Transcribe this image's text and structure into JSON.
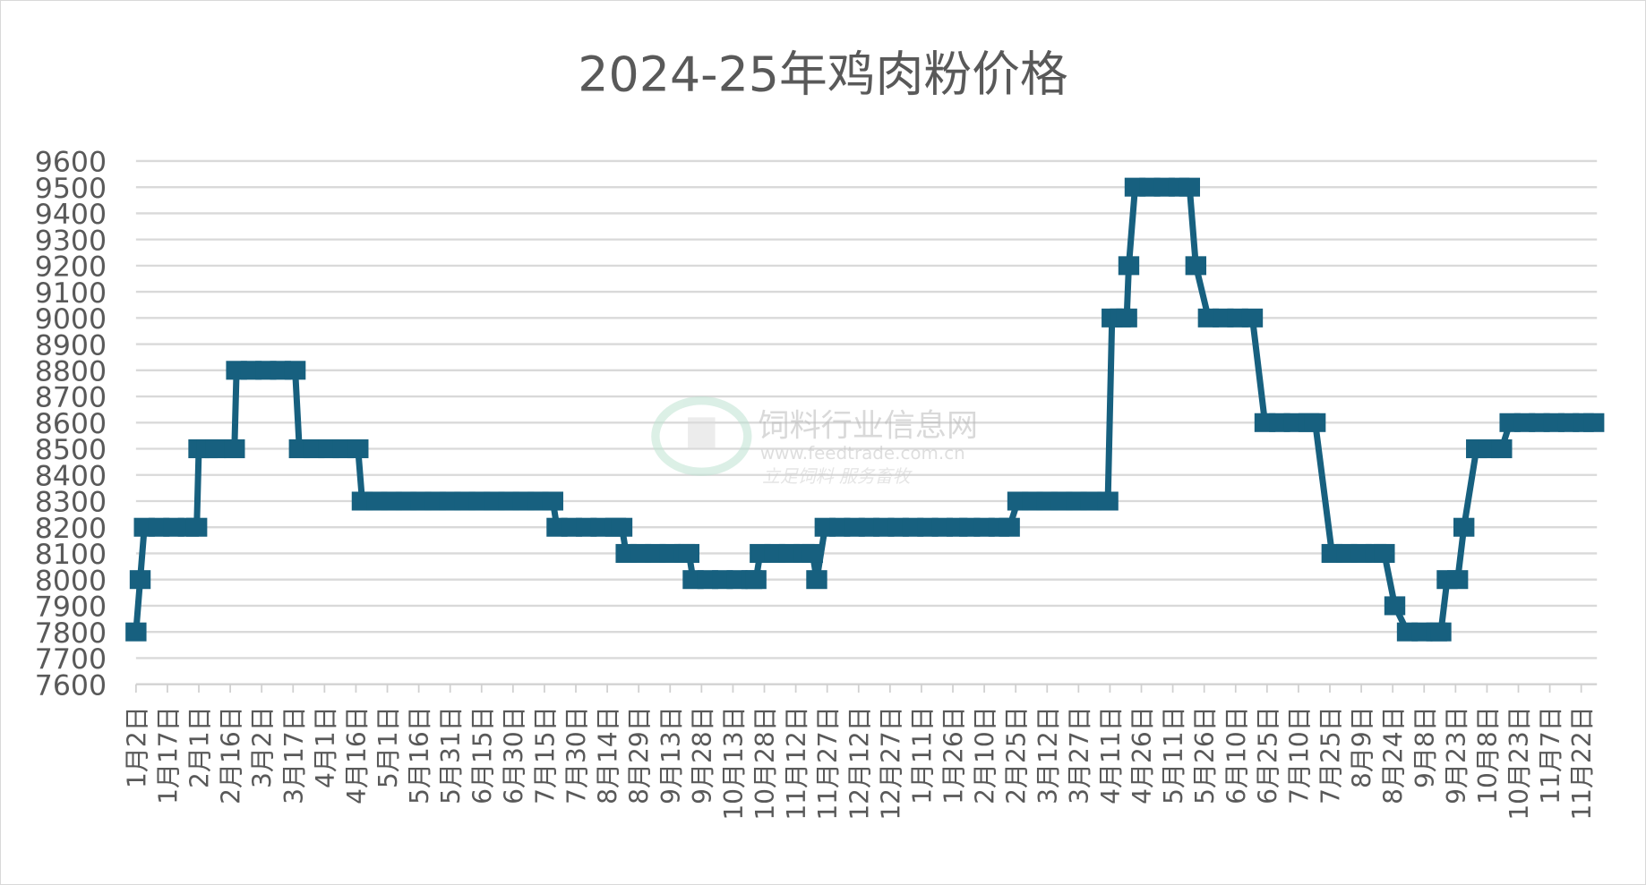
{
  "chart_data": {
    "type": "line",
    "title": "2024-25年鸡肉粉价格",
    "xlabel": "",
    "ylabel": "",
    "ylim": [
      7600,
      9600
    ],
    "ytick_step": 100,
    "grid": true,
    "legend": "none",
    "colors": {
      "series": "#17607f",
      "grid": "#d9d9d9",
      "text": "#595959"
    },
    "x_tick_labels": [
      "1月2日",
      "1月17日",
      "2月1日",
      "2月16日",
      "3月2日",
      "3月17日",
      "4月1日",
      "4月16日",
      "5月1日",
      "5月16日",
      "5月31日",
      "6月15日",
      "6月30日",
      "7月15日",
      "7月30日",
      "8月14日",
      "8月29日",
      "9月13日",
      "9月28日",
      "10月13日",
      "10月28日",
      "11月12日",
      "11月27日",
      "12月12日",
      "12月27日",
      "1月11日",
      "1月26日",
      "2月10日",
      "2月25日",
      "3月12日",
      "3月27日",
      "4月11日",
      "4月26日",
      "5月11日",
      "5月26日",
      "6月10日",
      "6月25日",
      "7月10日",
      "7月25日",
      "8月9日",
      "8月24日",
      "9月8日",
      "9月23日",
      "10月8日",
      "10月23日",
      "11月7日",
      "11月22日"
    ],
    "points": [
      [
        "2024-01-02",
        7800
      ],
      [
        "2024-01-04",
        8000
      ],
      [
        "2024-01-06",
        8200
      ],
      [
        "2024-01-13",
        8200
      ],
      [
        "2024-01-20",
        8200
      ],
      [
        "2024-01-27",
        8200
      ],
      [
        "2024-01-31",
        8200
      ],
      [
        "2024-02-01",
        8500
      ],
      [
        "2024-02-05",
        8500
      ],
      [
        "2024-02-09",
        8500
      ],
      [
        "2024-02-18",
        8500
      ],
      [
        "2024-02-19",
        8800
      ],
      [
        "2024-02-26",
        8800
      ],
      [
        "2024-03-04",
        8800
      ],
      [
        "2024-03-11",
        8800
      ],
      [
        "2024-03-18",
        8800
      ],
      [
        "2024-03-20",
        8500
      ],
      [
        "2024-03-27",
        8500
      ],
      [
        "2024-04-03",
        8500
      ],
      [
        "2024-04-10",
        8500
      ],
      [
        "2024-04-17",
        8500
      ],
      [
        "2024-04-19",
        8300
      ],
      [
        "2024-04-26",
        8300
      ],
      [
        "2024-05-03",
        8300
      ],
      [
        "2024-05-10",
        8300
      ],
      [
        "2024-05-17",
        8300
      ],
      [
        "2024-05-24",
        8300
      ],
      [
        "2024-05-31",
        8300
      ],
      [
        "2024-06-07",
        8300
      ],
      [
        "2024-06-14",
        8300
      ],
      [
        "2024-06-21",
        8300
      ],
      [
        "2024-06-28",
        8300
      ],
      [
        "2024-07-05",
        8300
      ],
      [
        "2024-07-12",
        8300
      ],
      [
        "2024-07-19",
        8300
      ],
      [
        "2024-07-21",
        8200
      ],
      [
        "2024-07-28",
        8200
      ],
      [
        "2024-08-04",
        8200
      ],
      [
        "2024-08-11",
        8200
      ],
      [
        "2024-08-18",
        8200
      ],
      [
        "2024-08-21",
        8200
      ],
      [
        "2024-08-23",
        8100
      ],
      [
        "2024-08-30",
        8100
      ],
      [
        "2024-09-06",
        8100
      ],
      [
        "2024-09-13",
        8100
      ],
      [
        "2024-09-20",
        8100
      ],
      [
        "2024-09-22",
        8100
      ],
      [
        "2024-09-24",
        8000
      ],
      [
        "2024-10-01",
        8000
      ],
      [
        "2024-10-08",
        8000
      ],
      [
        "2024-10-15",
        8000
      ],
      [
        "2024-10-22",
        8000
      ],
      [
        "2024-10-24",
        8000
      ],
      [
        "2024-10-26",
        8100
      ],
      [
        "2024-11-02",
        8100
      ],
      [
        "2024-11-09",
        8100
      ],
      [
        "2024-11-16",
        8100
      ],
      [
        "2024-11-20",
        8100
      ],
      [
        "2024-11-22",
        8000
      ],
      [
        "2024-11-26",
        8200
      ],
      [
        "2024-12-03",
        8200
      ],
      [
        "2024-12-10",
        8200
      ],
      [
        "2024-12-17",
        8200
      ],
      [
        "2024-12-24",
        8200
      ],
      [
        "2024-12-31",
        8200
      ],
      [
        "2025-01-07",
        8200
      ],
      [
        "2025-01-14",
        8200
      ],
      [
        "2025-01-21",
        8200
      ],
      [
        "2025-01-28",
        8200
      ],
      [
        "2025-02-03",
        8200
      ],
      [
        "2025-02-10",
        8200
      ],
      [
        "2025-02-17",
        8200
      ],
      [
        "2025-02-22",
        8200
      ],
      [
        "2025-02-26",
        8300
      ],
      [
        "2025-03-05",
        8300
      ],
      [
        "2025-03-12",
        8300
      ],
      [
        "2025-03-19",
        8300
      ],
      [
        "2025-03-26",
        8300
      ],
      [
        "2025-04-02",
        8300
      ],
      [
        "2025-04-10",
        8300
      ],
      [
        "2025-04-12",
        9000
      ],
      [
        "2025-04-16",
        9000
      ],
      [
        "2025-04-19",
        9000
      ],
      [
        "2025-04-20",
        9200
      ],
      [
        "2025-04-23",
        9500
      ],
      [
        "2025-04-30",
        9500
      ],
      [
        "2025-05-07",
        9500
      ],
      [
        "2025-05-14",
        9500
      ],
      [
        "2025-05-19",
        9500
      ],
      [
        "2025-05-22",
        9200
      ],
      [
        "2025-05-28",
        9000
      ],
      [
        "2025-06-04",
        9000
      ],
      [
        "2025-06-11",
        9000
      ],
      [
        "2025-06-18",
        9000
      ],
      [
        "2025-06-24",
        8600
      ],
      [
        "2025-07-01",
        8600
      ],
      [
        "2025-07-08",
        8600
      ],
      [
        "2025-07-15",
        8600
      ],
      [
        "2025-07-18",
        8600
      ],
      [
        "2025-07-26",
        8100
      ],
      [
        "2025-08-02",
        8100
      ],
      [
        "2025-08-09",
        8100
      ],
      [
        "2025-08-16",
        8100
      ],
      [
        "2025-08-20",
        8100
      ],
      [
        "2025-08-25",
        7900
      ],
      [
        "2025-08-31",
        7800
      ],
      [
        "2025-09-07",
        7800
      ],
      [
        "2025-09-14",
        7800
      ],
      [
        "2025-09-16",
        7800
      ],
      [
        "2025-09-19",
        8000
      ],
      [
        "2025-09-24",
        8000
      ],
      [
        "2025-09-27",
        8200
      ],
      [
        "2025-10-03",
        8500
      ],
      [
        "2025-10-09",
        8500
      ],
      [
        "2025-10-15",
        8500
      ],
      [
        "2025-10-19",
        8600
      ],
      [
        "2025-10-26",
        8600
      ],
      [
        "2025-11-02",
        8600
      ],
      [
        "2025-11-09",
        8600
      ],
      [
        "2025-11-16",
        8600
      ],
      [
        "2025-11-23",
        8600
      ],
      [
        "2025-11-28",
        8600
      ]
    ]
  },
  "watermark": {
    "name": "饲料行业信息网",
    "url": "www.feedtrade.com.cn",
    "slogan": "立足饲料    服务畜牧"
  }
}
